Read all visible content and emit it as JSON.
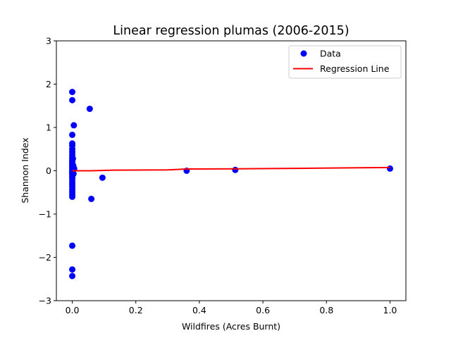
{
  "chart_data": {
    "type": "scatter",
    "title": "Linear regression plumas (2006-2015)",
    "xlabel": "Wildfires (Acres Burnt)",
    "ylabel": "Shannon Index",
    "xlim": [
      -0.05,
      1.05
    ],
    "ylim": [
      -3,
      3
    ],
    "xticks": [
      0.0,
      0.2,
      0.4,
      0.6,
      0.8,
      1.0
    ],
    "xtick_labels": [
      "0.0",
      "0.2",
      "0.4",
      "0.6",
      "0.8",
      "1.0"
    ],
    "yticks": [
      -3,
      -2,
      -1,
      0,
      1,
      2,
      3
    ],
    "ytick_labels": [
      "−3",
      "−2",
      "−1",
      "0",
      "1",
      "2",
      "3"
    ],
    "grid": false,
    "legend_position": "top-right",
    "colors": {
      "data": "#0000ff",
      "regression": "#ff0000",
      "axes": "#000000"
    },
    "series": [
      {
        "name": "Data",
        "kind": "scatter",
        "points": [
          [
            0.0,
            1.82
          ],
          [
            0.0,
            1.63
          ],
          [
            0.005,
            1.05
          ],
          [
            0.055,
            1.43
          ],
          [
            0.0,
            0.83
          ],
          [
            0.0,
            0.63
          ],
          [
            0.0,
            0.58
          ],
          [
            0.0,
            0.5
          ],
          [
            0.0,
            0.43
          ],
          [
            0.0,
            0.37
          ],
          [
            0.0,
            0.31
          ],
          [
            0.0,
            0.26
          ],
          [
            0.0,
            0.21
          ],
          [
            0.0,
            0.17
          ],
          [
            0.0,
            0.13
          ],
          [
            0.0,
            0.09
          ],
          [
            0.0,
            0.05
          ],
          [
            0.0,
            0.02
          ],
          [
            0.0,
            -0.02
          ],
          [
            0.0,
            -0.05
          ],
          [
            0.0,
            -0.09
          ],
          [
            0.0,
            -0.14
          ],
          [
            0.0,
            -0.19
          ],
          [
            0.0,
            -0.25
          ],
          [
            0.0,
            -0.31
          ],
          [
            0.0,
            -0.37
          ],
          [
            0.0,
            -0.43
          ],
          [
            0.0,
            -0.49
          ],
          [
            0.0,
            -0.55
          ],
          [
            0.0,
            -0.6
          ],
          [
            0.003,
            0.12
          ],
          [
            0.004,
            -0.07
          ],
          [
            0.006,
            0.05
          ],
          [
            0.002,
            0.28
          ],
          [
            0.06,
            -0.65
          ],
          [
            0.095,
            -0.16
          ],
          [
            0.0,
            -1.73
          ],
          [
            0.0,
            -2.28
          ],
          [
            0.0,
            -2.43
          ],
          [
            0.36,
            0.0
          ],
          [
            0.513,
            0.02
          ],
          [
            1.0,
            0.05
          ]
        ]
      },
      {
        "name": "Regression Line",
        "kind": "line",
        "points": [
          [
            0.0,
            0.0
          ],
          [
            0.06,
            0.0
          ],
          [
            0.13,
            0.015
          ],
          [
            0.2,
            0.017
          ],
          [
            0.3,
            0.02
          ],
          [
            0.36,
            0.04
          ],
          [
            0.45,
            0.042
          ],
          [
            0.513,
            0.045
          ],
          [
            0.7,
            0.055
          ],
          [
            0.9,
            0.07
          ],
          [
            1.0,
            0.075
          ]
        ]
      }
    ]
  }
}
